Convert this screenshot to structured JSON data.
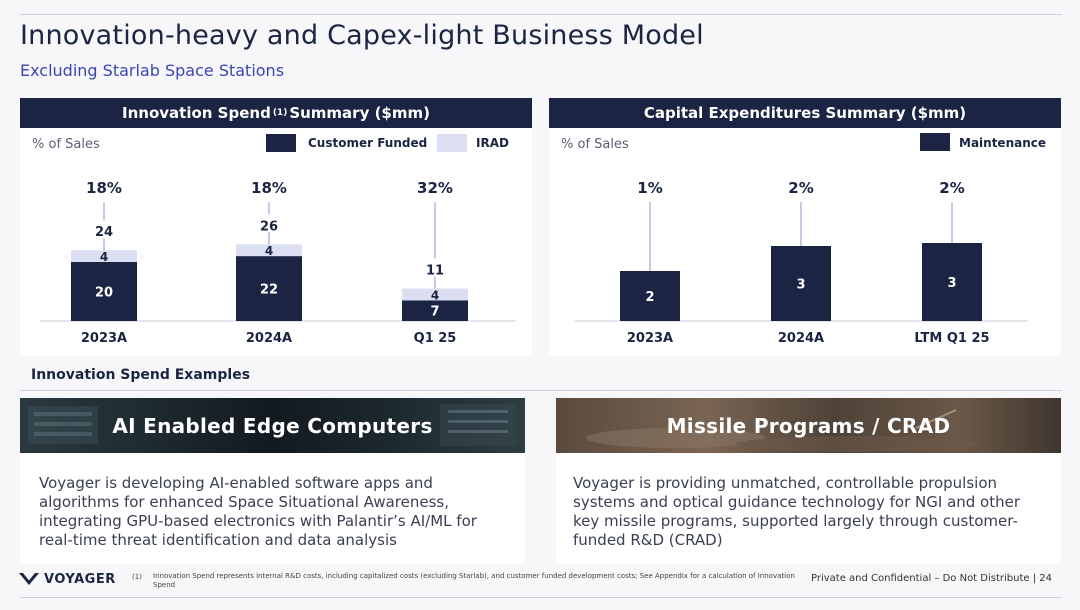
{
  "page": {
    "title": "Innovation-heavy and Capex-light Business Model",
    "subtitle": "Excluding Starlab Space Stations"
  },
  "innovation_panel": {
    "title_pre": "Innovation Spend",
    "footnote_mark": "(1)",
    "title_post": "Summary ($mm)",
    "pct_of_sales": "% of Sales",
    "legend": [
      {
        "label": "Customer Funded",
        "color": "#1b2443"
      },
      {
        "label": "IRAD",
        "color": "#dcdff1"
      }
    ]
  },
  "capex_panel": {
    "title": "Capital Expenditures Summary ($mm)",
    "pct_of_sales": "% of Sales",
    "legend": [
      {
        "label": "Maintenance",
        "color": "#1b2443"
      }
    ]
  },
  "chart_data": [
    {
      "type": "bar",
      "stacked": true,
      "title": "Innovation Spend (1) Summary ($mm)",
      "categories": [
        "2023A",
        "2024A",
        "Q1 25"
      ],
      "series": [
        {
          "name": "Customer Funded",
          "values": [
            20,
            22,
            7
          ]
        },
        {
          "name": "IRAD",
          "values": [
            4,
            4,
            4
          ]
        }
      ],
      "totals": [
        24,
        26,
        11
      ],
      "pct_of_sales": [
        "18%",
        "18%",
        "32%"
      ],
      "ylim": [
        0,
        30
      ]
    },
    {
      "type": "bar",
      "title": "Capital Expenditures Summary ($mm)",
      "categories": [
        "2023A",
        "2024A",
        "LTM Q1 25"
      ],
      "series": [
        {
          "name": "Maintenance",
          "values": [
            2,
            3,
            3
          ]
        }
      ],
      "pct_of_sales": [
        "1%",
        "2%",
        "2%"
      ],
      "ylim": [
        0,
        5
      ]
    }
  ],
  "examples": {
    "label": "Innovation Spend Examples",
    "cards": [
      {
        "title": "AI Enabled Edge Computers",
        "body": "Voyager is developing AI-enabled software apps and algorithms for enhanced Space Situational Awareness, integrating GPU-based electronics with Palantir’s AI/ML for real-time threat identification and data analysis"
      },
      {
        "title": "Missile Programs / CRAD",
        "body": "Voyager is providing unmatched, controllable propulsion systems and optical guidance technology for NGI and other key missile programs, supported largely through customer-funded R&D (CRAD)"
      }
    ]
  },
  "footer": {
    "logo": "VOYAGER",
    "footnote_num": "(1)",
    "footnote": "Innovation Spend represents internal R&D costs, including capitalized costs (excluding Starlab), and customer funded development costs; See Appendix for a calculation of Innovation Spend",
    "confidential": "Private and Confidential – Do Not Distribute | 24"
  },
  "colors": {
    "navy": "#1b2443",
    "irad": "#dcdff1",
    "accent": "#3b46b6",
    "connector": "#8f96c6"
  }
}
